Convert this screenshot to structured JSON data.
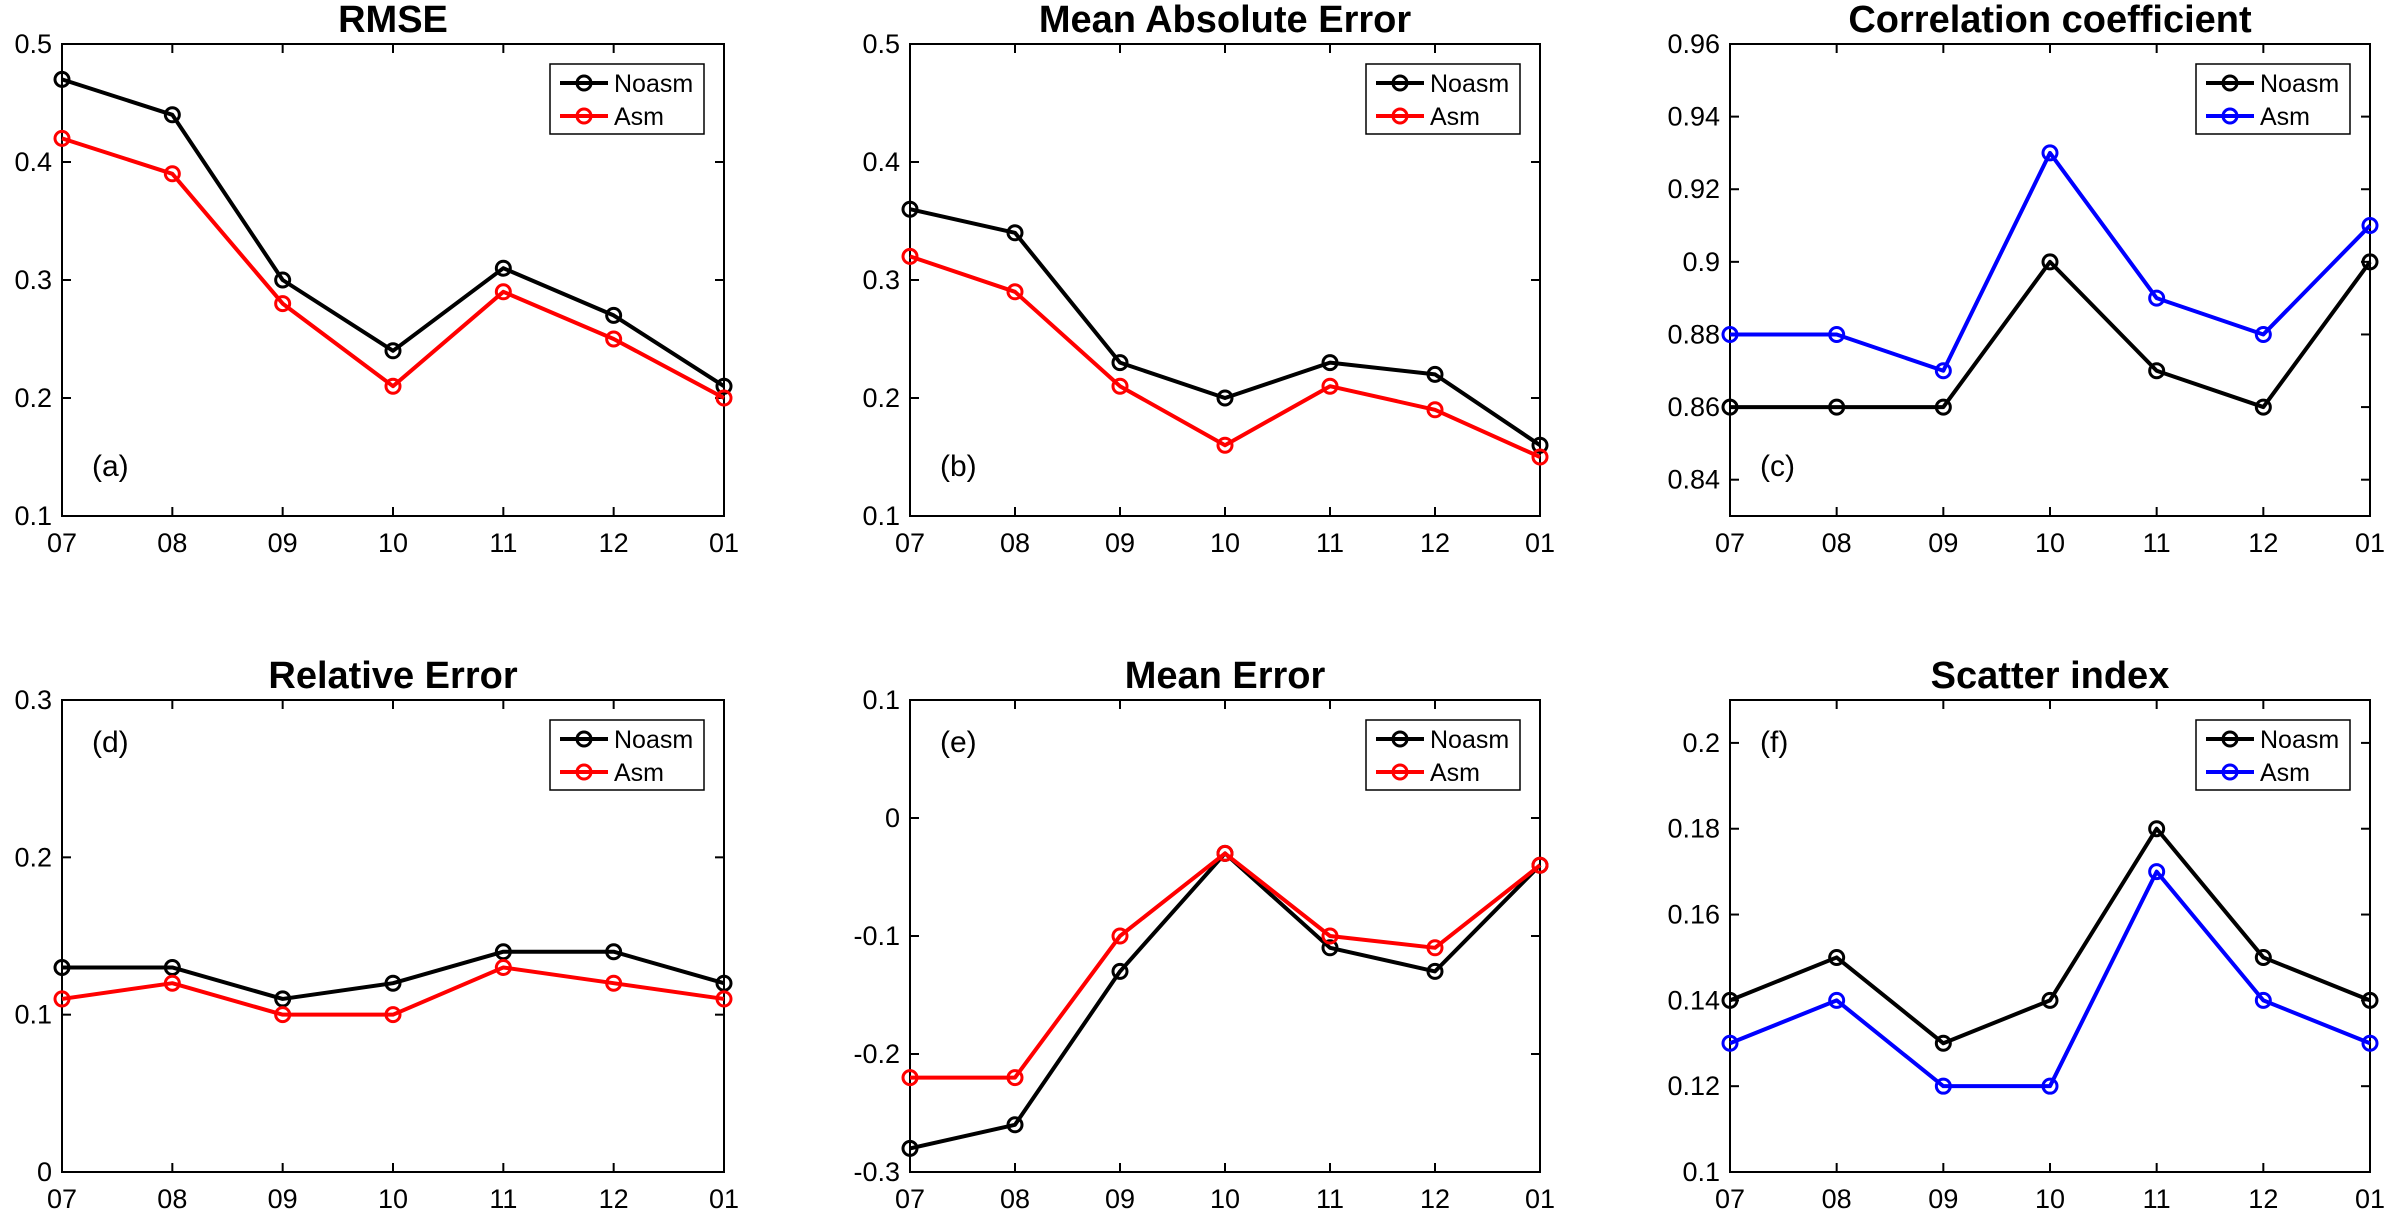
{
  "figure": {
    "categories": [
      "07",
      "08",
      "09",
      "10",
      "11",
      "12",
      "01"
    ],
    "colors": {
      "noasm": "#000000",
      "asm_red": "#ff0000",
      "asm_blue": "#0000ff"
    }
  },
  "chart_data": [
    {
      "type": "line",
      "title": "RMSE",
      "panel_label": "(a)",
      "categories": [
        "07",
        "08",
        "09",
        "10",
        "11",
        "12",
        "01"
      ],
      "ylim": [
        0.1,
        0.5
      ],
      "yticks": [
        0.1,
        0.2,
        0.3,
        0.4,
        0.5
      ],
      "ytick_labels": [
        "0.1",
        "0.2",
        "0.3",
        "0.4",
        "0.5"
      ],
      "legend_position": "top-right",
      "series": [
        {
          "name": "Noasm",
          "color": "#000000",
          "values": [
            0.47,
            0.44,
            0.3,
            0.24,
            0.31,
            0.27,
            0.21
          ]
        },
        {
          "name": "Asm",
          "color": "#ff0000",
          "values": [
            0.42,
            0.39,
            0.28,
            0.21,
            0.29,
            0.25,
            0.2
          ]
        }
      ]
    },
    {
      "type": "line",
      "title": "Mean Absolute Error",
      "panel_label": "(b)",
      "categories": [
        "07",
        "08",
        "09",
        "10",
        "11",
        "12",
        "01"
      ],
      "ylim": [
        0.1,
        0.5
      ],
      "yticks": [
        0.1,
        0.2,
        0.3,
        0.4,
        0.5
      ],
      "ytick_labels": [
        "0.1",
        "0.2",
        "0.3",
        "0.4",
        "0.5"
      ],
      "legend_position": "top-right",
      "series": [
        {
          "name": "Noasm",
          "color": "#000000",
          "values": [
            0.36,
            0.34,
            0.23,
            0.2,
            0.23,
            0.22,
            0.16
          ]
        },
        {
          "name": "Asm",
          "color": "#ff0000",
          "values": [
            0.32,
            0.29,
            0.21,
            0.16,
            0.21,
            0.19,
            0.15
          ]
        }
      ]
    },
    {
      "type": "line",
      "title": "Correlation coefficient",
      "panel_label": "(c)",
      "categories": [
        "07",
        "08",
        "09",
        "10",
        "11",
        "12",
        "01"
      ],
      "ylim": [
        0.83,
        0.96
      ],
      "yticks": [
        0.84,
        0.86,
        0.88,
        0.9,
        0.92,
        0.94,
        0.96
      ],
      "ytick_labels": [
        "0.84",
        "0.86",
        "0.88",
        "0.9",
        "0.92",
        "0.94",
        "0.96"
      ],
      "legend_position": "top-right",
      "series": [
        {
          "name": "Noasm",
          "color": "#000000",
          "values": [
            0.86,
            0.86,
            0.86,
            0.9,
            0.87,
            0.86,
            0.9
          ]
        },
        {
          "name": "Asm",
          "color": "#0000ff",
          "values": [
            0.88,
            0.88,
            0.87,
            0.93,
            0.89,
            0.88,
            0.91
          ]
        }
      ]
    },
    {
      "type": "line",
      "title": "Relative Error",
      "panel_label": "(d)",
      "categories": [
        "07",
        "08",
        "09",
        "10",
        "11",
        "12",
        "01"
      ],
      "ylim": [
        0,
        0.3
      ],
      "yticks": [
        0,
        0.1,
        0.2,
        0.3
      ],
      "ytick_labels": [
        "0",
        "0.1",
        "0.2",
        "0.3"
      ],
      "legend_position": "top-right",
      "series": [
        {
          "name": "Noasm",
          "color": "#000000",
          "values": [
            0.13,
            0.13,
            0.11,
            0.12,
            0.14,
            0.14,
            0.12
          ]
        },
        {
          "name": "Asm",
          "color": "#ff0000",
          "values": [
            0.11,
            0.12,
            0.1,
            0.1,
            0.13,
            0.12,
            0.11
          ]
        }
      ]
    },
    {
      "type": "line",
      "title": "Mean Error",
      "panel_label": "(e)",
      "categories": [
        "07",
        "08",
        "09",
        "10",
        "11",
        "12",
        "01"
      ],
      "ylim": [
        -0.3,
        0.1
      ],
      "yticks": [
        -0.3,
        -0.2,
        -0.1,
        0,
        0.1
      ],
      "ytick_labels": [
        "-0.3",
        "-0.2",
        "-0.1",
        "0",
        "0.1"
      ],
      "legend_position": "top-right",
      "series": [
        {
          "name": "Noasm",
          "color": "#000000",
          "values": [
            -0.28,
            -0.26,
            -0.13,
            -0.03,
            -0.11,
            -0.13,
            -0.04
          ]
        },
        {
          "name": "Asm",
          "color": "#ff0000",
          "values": [
            -0.22,
            -0.22,
            -0.1,
            -0.03,
            -0.1,
            -0.11,
            -0.04
          ]
        }
      ]
    },
    {
      "type": "line",
      "title": "Scatter index",
      "panel_label": "(f)",
      "categories": [
        "07",
        "08",
        "09",
        "10",
        "11",
        "12",
        "01"
      ],
      "ylim": [
        0.1,
        0.21
      ],
      "yticks": [
        0.1,
        0.12,
        0.14,
        0.16,
        0.18,
        0.2
      ],
      "ytick_labels": [
        "0.1",
        "0.12",
        "0.14",
        "0.16",
        "0.18",
        "0.2"
      ],
      "legend_position": "top-right",
      "series": [
        {
          "name": "Noasm",
          "color": "#000000",
          "values": [
            0.14,
            0.15,
            0.13,
            0.14,
            0.18,
            0.15,
            0.14
          ]
        },
        {
          "name": "Asm",
          "color": "#0000ff",
          "values": [
            0.13,
            0.14,
            0.12,
            0.12,
            0.17,
            0.14,
            0.13
          ]
        }
      ]
    }
  ]
}
